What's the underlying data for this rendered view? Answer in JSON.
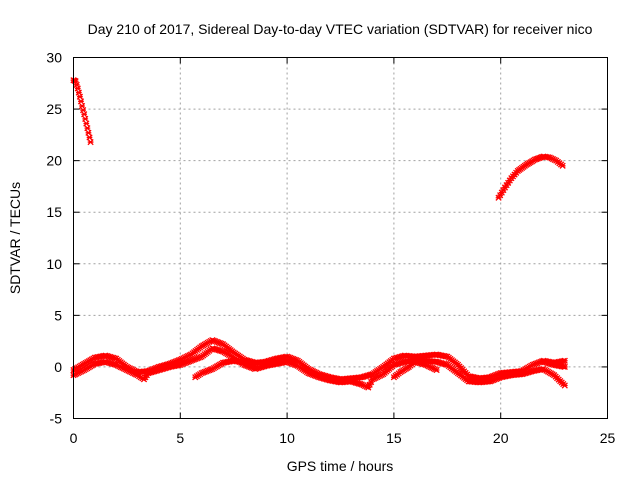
{
  "chart_data": {
    "type": "scatter",
    "title": "Day 210 of 2017, Sidereal Day-to-day VTEC variation (SDTVAR) for receiver nico",
    "xlabel": "GPS time / hours",
    "ylabel": "SDTVAR / TECUs",
    "xlim": [
      0,
      25
    ],
    "ylim": [
      -5,
      30
    ],
    "xticks": [
      "0",
      "5",
      "10",
      "15",
      "20",
      "25"
    ],
    "yticks": [
      "-5",
      "0",
      "5",
      "10",
      "15",
      "20",
      "25",
      "30"
    ],
    "grid": true,
    "marker_color": "#ff0000",
    "series": [
      {
        "name": "high_segment_start",
        "points": [
          [
            0.0,
            27.8
          ],
          [
            0.1,
            27.7
          ],
          [
            0.2,
            27.0
          ],
          [
            0.3,
            26.2
          ],
          [
            0.4,
            25.3
          ],
          [
            0.5,
            24.5
          ],
          [
            0.6,
            23.6
          ],
          [
            0.7,
            22.7
          ],
          [
            0.8,
            21.8
          ]
        ]
      },
      {
        "name": "high_segment_end",
        "points": [
          [
            19.9,
            16.4
          ],
          [
            20.2,
            17.4
          ],
          [
            20.5,
            18.3
          ],
          [
            20.8,
            19.0
          ],
          [
            21.2,
            19.6
          ],
          [
            21.6,
            20.1
          ],
          [
            22.0,
            20.4
          ],
          [
            22.3,
            20.3
          ],
          [
            22.6,
            20.0
          ],
          [
            22.9,
            19.5
          ]
        ]
      },
      {
        "name": "low_band_upper",
        "points": [
          [
            0.0,
            -0.3
          ],
          [
            0.5,
            0.3
          ],
          [
            1.0,
            0.9
          ],
          [
            1.5,
            1.1
          ],
          [
            2.0,
            0.8
          ],
          [
            2.5,
            0.0
          ],
          [
            3.0,
            -0.5
          ],
          [
            3.5,
            -0.4
          ],
          [
            4.0,
            0.0
          ],
          [
            4.5,
            0.3
          ],
          [
            5.0,
            0.7
          ],
          [
            5.5,
            1.2
          ],
          [
            6.0,
            2.0
          ],
          [
            6.5,
            2.6
          ],
          [
            7.0,
            2.2
          ],
          [
            7.5,
            1.4
          ],
          [
            8.0,
            0.7
          ],
          [
            8.5,
            0.4
          ],
          [
            9.0,
            0.5
          ],
          [
            9.5,
            0.8
          ],
          [
            10.0,
            1.0
          ],
          [
            10.5,
            0.6
          ],
          [
            11.0,
            -0.2
          ],
          [
            11.5,
            -0.7
          ],
          [
            12.0,
            -1.0
          ],
          [
            12.5,
            -1.2
          ],
          [
            13.0,
            -1.1
          ],
          [
            13.5,
            -1.0
          ],
          [
            14.0,
            -0.7
          ],
          [
            14.5,
            0.0
          ],
          [
            15.0,
            0.8
          ],
          [
            15.5,
            1.1
          ],
          [
            16.0,
            1.0
          ],
          [
            16.5,
            1.1
          ],
          [
            17.0,
            1.2
          ],
          [
            17.5,
            1.0
          ],
          [
            18.0,
            0.2
          ],
          [
            18.5,
            -0.9
          ],
          [
            19.0,
            -1.1
          ],
          [
            19.5,
            -1.0
          ],
          [
            20.0,
            -0.6
          ],
          [
            20.5,
            -0.5
          ],
          [
            21.0,
            -0.4
          ],
          [
            21.5,
            0.2
          ],
          [
            22.0,
            0.6
          ],
          [
            22.5,
            0.4
          ],
          [
            23.0,
            0.6
          ]
        ]
      },
      {
        "name": "low_band_lower",
        "points": [
          [
            0.0,
            -0.8
          ],
          [
            0.5,
            -0.3
          ],
          [
            1.0,
            0.3
          ],
          [
            1.5,
            0.5
          ],
          [
            2.0,
            0.2
          ],
          [
            2.5,
            -0.3
          ],
          [
            3.0,
            -0.8
          ],
          [
            3.3,
            -1.2
          ],
          [
            3.5,
            -0.6
          ],
          [
            4.0,
            -0.3
          ],
          [
            4.5,
            0.0
          ],
          [
            5.0,
            0.2
          ],
          [
            5.5,
            0.6
          ],
          [
            6.0,
            1.0
          ],
          [
            6.5,
            1.8
          ],
          [
            7.0,
            1.5
          ],
          [
            7.5,
            0.9
          ],
          [
            8.0,
            0.2
          ],
          [
            8.5,
            -0.2
          ],
          [
            9.0,
            0.1
          ],
          [
            9.5,
            0.3
          ],
          [
            10.0,
            0.5
          ],
          [
            10.5,
            0.1
          ],
          [
            11.0,
            -0.6
          ],
          [
            11.5,
            -1.0
          ],
          [
            12.0,
            -1.3
          ],
          [
            12.5,
            -1.5
          ],
          [
            13.0,
            -1.4
          ],
          [
            13.5,
            -1.7
          ],
          [
            13.8,
            -2.0
          ],
          [
            14.0,
            -1.2
          ],
          [
            14.5,
            -0.7
          ],
          [
            15.0,
            0.2
          ],
          [
            15.5,
            0.5
          ],
          [
            16.0,
            0.6
          ],
          [
            16.5,
            0.6
          ],
          [
            17.0,
            0.5
          ],
          [
            17.5,
            0.2
          ],
          [
            18.0,
            -0.6
          ],
          [
            18.5,
            -1.4
          ],
          [
            19.0,
            -1.5
          ],
          [
            19.5,
            -1.4
          ],
          [
            20.0,
            -1.0
          ],
          [
            20.5,
            -0.8
          ],
          [
            21.0,
            -0.7
          ],
          [
            21.5,
            -0.4
          ],
          [
            22.0,
            -0.2
          ],
          [
            22.5,
            -0.8
          ],
          [
            23.0,
            -1.8
          ]
        ]
      },
      {
        "name": "low_band_cross",
        "points": [
          [
            5.7,
            -1.0
          ],
          [
            6.0,
            -0.6
          ],
          [
            6.5,
            -0.2
          ],
          [
            7.0,
            0.4
          ],
          [
            7.5,
            0.6
          ],
          [
            8.0,
            0.4
          ],
          [
            8.5,
            0.2
          ],
          [
            15.0,
            -1.0
          ],
          [
            15.3,
            -0.5
          ],
          [
            15.7,
            0.0
          ],
          [
            16.0,
            0.5
          ],
          [
            16.5,
            0.2
          ],
          [
            17.0,
            -0.3
          ],
          [
            22.0,
            0.5
          ],
          [
            22.5,
            0.2
          ],
          [
            23.0,
            0.0
          ]
        ]
      }
    ]
  }
}
